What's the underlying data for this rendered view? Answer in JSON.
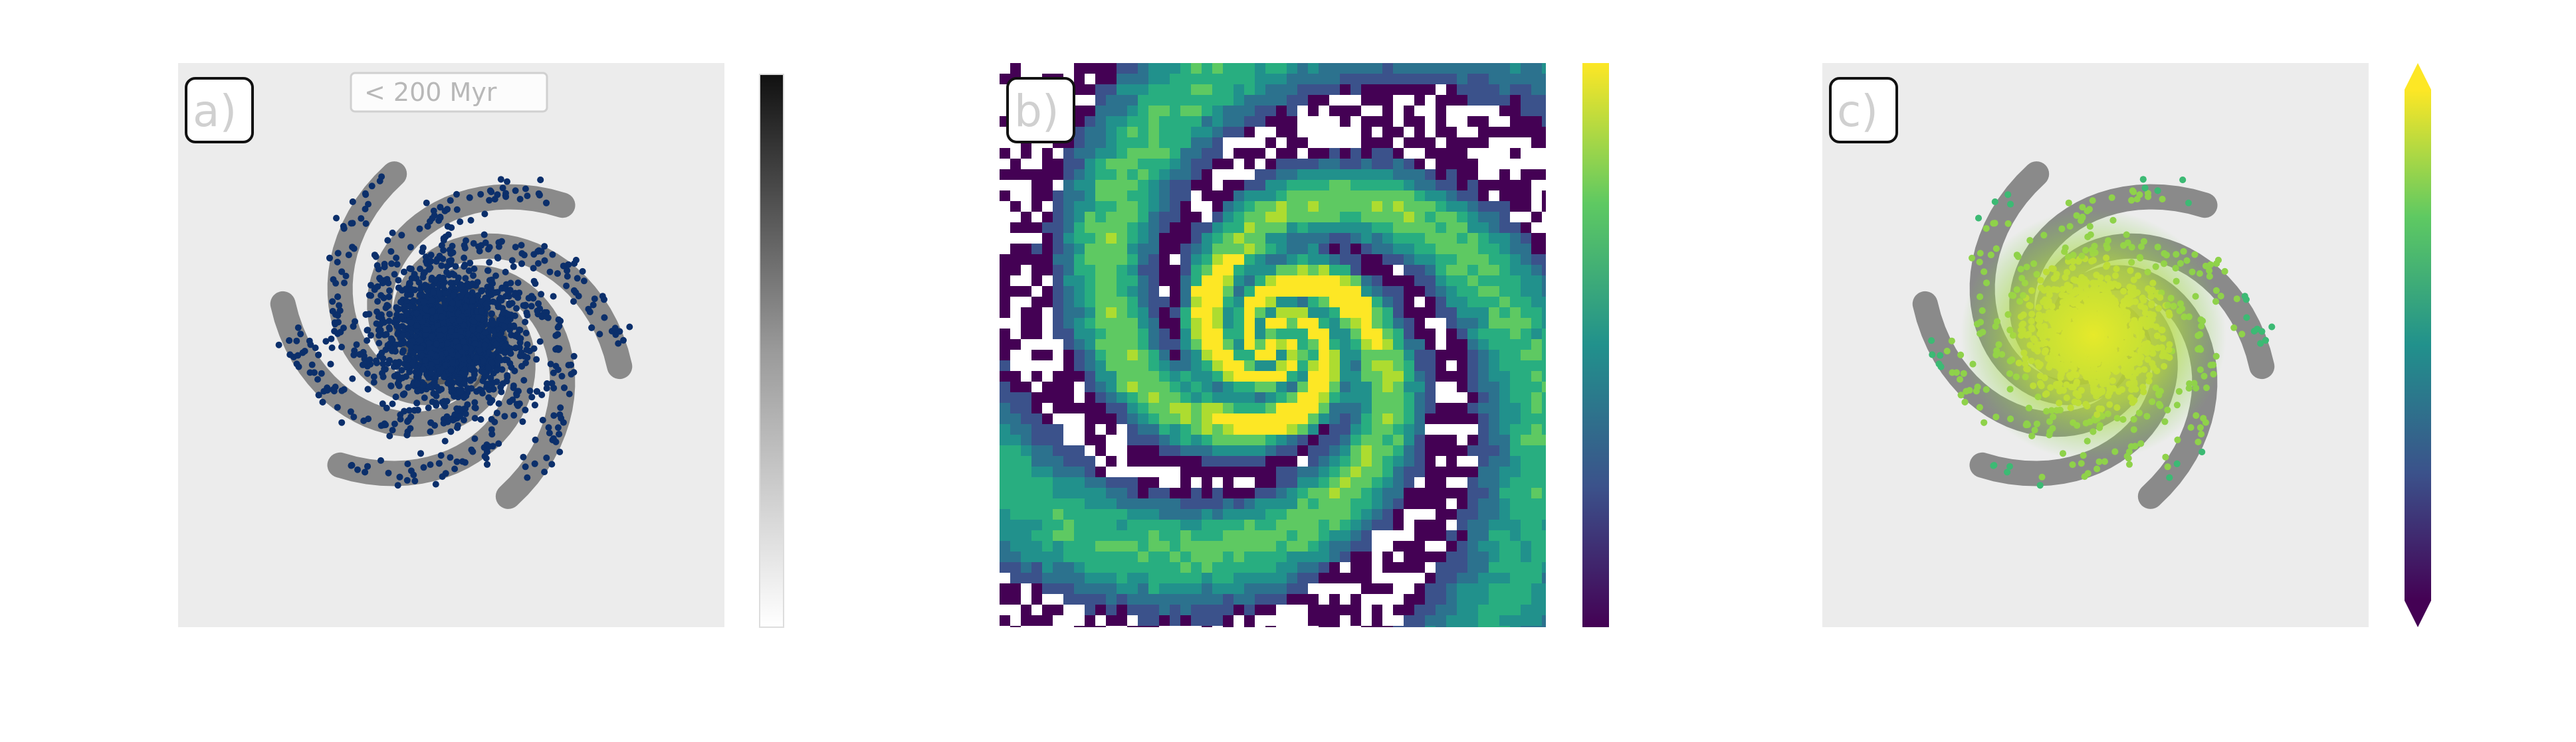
{
  "panels": [
    {
      "id": "a",
      "label": "a)",
      "legend_text": "< 200 Myr",
      "marker_color": "#0b2f6b",
      "colorbar": "gray"
    },
    {
      "id": "b",
      "label": "b)",
      "colorbar": "viridis"
    },
    {
      "id": "c",
      "label": "c)",
      "colorbar": "viridis-extended"
    }
  ],
  "colors": {
    "viridis_low": "#440154",
    "viridis_mid": "#21918c",
    "viridis_high": "#fde725",
    "gray_low": "#ffffff",
    "gray_high": "#111111"
  }
}
